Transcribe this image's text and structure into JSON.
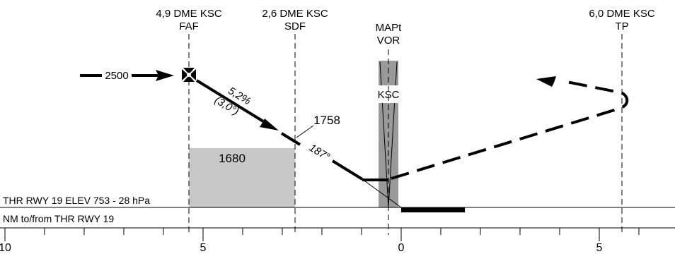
{
  "fixes": {
    "faf": {
      "line1": "4,9 DME KSC",
      "line2": "FAF"
    },
    "sdf": {
      "line1": "2,6 DME KSC",
      "line2": "SDF"
    },
    "mapt": {
      "line1": "MAPt",
      "line2": "VOR"
    },
    "tp": {
      "line1": "6,0 DME KSC",
      "line2": "TP"
    }
  },
  "approach": {
    "altitude_label": "2500",
    "gradient": "5,2%",
    "angle": "(3,0°)",
    "sdf_altitude": "1758",
    "course": "187°",
    "minimum_altitude": "1680",
    "vor_ident": "KSC"
  },
  "threshold_label": "THR RWY 19 ELEV 753 - 28 hPa",
  "distance_label": "NM to/from THR RWY 19",
  "scale_labels": [
    "10",
    "5",
    "0",
    "5"
  ],
  "colors": {
    "block": "#c8c8c8",
    "vor_band": "#999999",
    "line": "#000000"
  }
}
